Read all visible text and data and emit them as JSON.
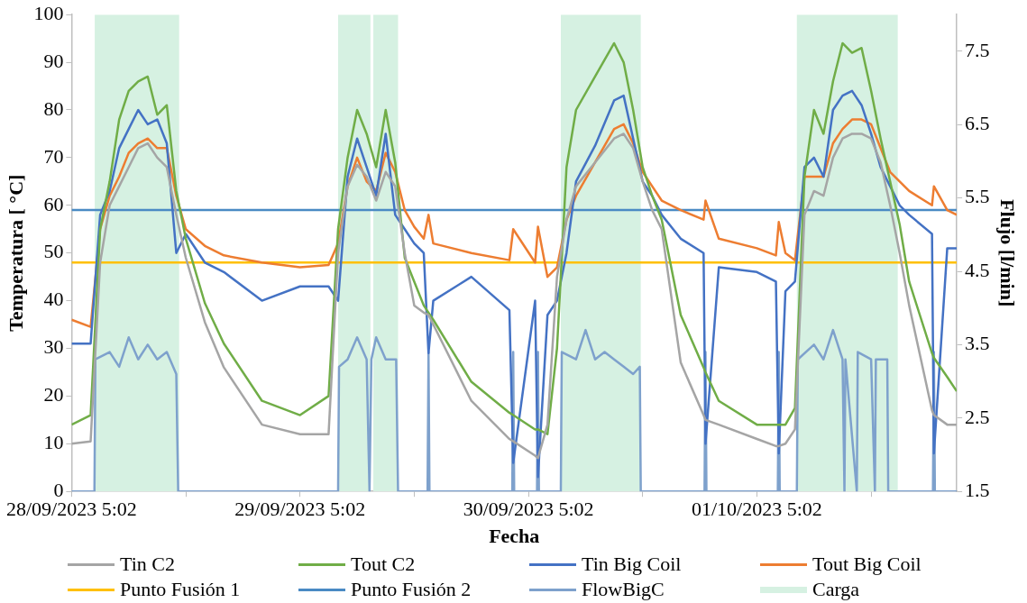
{
  "chart_data": {
    "type": "line",
    "xlabel": "Fecha",
    "ylabel": "Temperatura [ °C]",
    "y2label": "Flujo [l/min]",
    "x": [
      "2023-09-28T05:02",
      "2023-09-28T07:02",
      "2023-09-28T08:02",
      "2023-09-28T09:02",
      "2023-09-28T10:02",
      "2023-09-28T11:02",
      "2023-09-28T12:02",
      "2023-09-28T13:02",
      "2023-09-28T14:02",
      "2023-09-28T15:02",
      "2023-09-28T16:02",
      "2023-09-28T17:02",
      "2023-09-28T19:02",
      "2023-09-28T21:02",
      "2023-09-29T01:02",
      "2023-09-29T05:02",
      "2023-09-29T08:02",
      "2023-09-29T09:02",
      "2023-09-29T10:02",
      "2023-09-29T11:02",
      "2023-09-29T12:02",
      "2023-09-29T13:02",
      "2023-09-29T14:02",
      "2023-09-29T15:02",
      "2023-09-29T16:02",
      "2023-09-29T17:02",
      "2023-09-29T18:02",
      "2023-09-29T18:32",
      "2023-09-29T19:02",
      "2023-09-29T23:02",
      "2023-09-30T03:02",
      "2023-09-30T03:26",
      "2023-09-30T05:44",
      "2023-09-30T06:02",
      "2023-09-30T07:02",
      "2023-09-30T08:02",
      "2023-09-30T09:02",
      "2023-09-30T10:02",
      "2023-09-30T12:02",
      "2023-09-30T14:02",
      "2023-09-30T15:02",
      "2023-09-30T16:02",
      "2023-09-30T17:02",
      "2023-09-30T18:02",
      "2023-09-30T19:02",
      "2023-09-30T21:02",
      "2023-09-30T23:26",
      "2023-09-30T23:38",
      "2023-10-01T01:02",
      "2023-10-01T05:02",
      "2023-10-01T07:02",
      "2023-10-01T07:20",
      "2023-10-01T08:02",
      "2023-10-01T09:02",
      "2023-10-01T10:02",
      "2023-10-01T11:02",
      "2023-10-01T12:02",
      "2023-10-01T13:02",
      "2023-10-01T14:02",
      "2023-10-01T15:02",
      "2023-10-01T16:02",
      "2023-10-01T17:02",
      "2023-10-01T18:02",
      "2023-10-01T19:02",
      "2023-10-01T20:02",
      "2023-10-01T21:02",
      "2023-10-01T23:26",
      "2023-10-01T23:38",
      "2023-10-02T01:02",
      "2023-10-02T02:02"
    ],
    "series": [
      {
        "name": "Tin C2",
        "color": "#a5a5a5",
        "values": [
          10,
          10.5,
          48,
          60,
          64,
          68,
          72,
          73,
          70,
          68,
          58,
          49,
          35.5,
          26,
          14,
          12,
          12,
          50,
          64,
          68.5,
          66,
          61,
          67,
          64,
          50,
          39,
          37.5,
          37,
          35,
          19,
          11,
          10.5,
          7.5,
          7,
          14,
          45,
          57,
          64,
          69,
          74,
          75,
          72,
          65,
          59,
          55,
          27,
          16,
          15,
          14,
          11,
          9.5,
          9.5,
          10,
          13,
          58,
          63,
          62,
          70,
          74,
          75,
          75,
          74,
          69,
          60,
          50,
          39,
          17,
          16,
          14,
          14
        ]
      },
      {
        "name": "Tout C2",
        "color": "#70ad47",
        "values": [
          14,
          16,
          55,
          65,
          78,
          84,
          86,
          87,
          79,
          81,
          63,
          53,
          39.5,
          31,
          19,
          16,
          20,
          55,
          70,
          80,
          75,
          68,
          80,
          69,
          49,
          44,
          39,
          37.5,
          36,
          23,
          16.5,
          16,
          13,
          13,
          12,
          30,
          68,
          80,
          87,
          94,
          90,
          80,
          68,
          62,
          57,
          37,
          26,
          25,
          19,
          14,
          14,
          14,
          14,
          17.5,
          66,
          80,
          75,
          86,
          94,
          92,
          93,
          84,
          74,
          65,
          56,
          44,
          29,
          28,
          24,
          21
        ]
      },
      {
        "name": "Tin Big Coil",
        "color": "#4472c4",
        "values": [
          31,
          31,
          58,
          63,
          72,
          76,
          80,
          77,
          78,
          73,
          50,
          54,
          48,
          46,
          40,
          43,
          43,
          40,
          66,
          74,
          68,
          62,
          75,
          58,
          55,
          52,
          50,
          29,
          40,
          45,
          38,
          6,
          40,
          3,
          37,
          40,
          50,
          65,
          72.5,
          82,
          83,
          74,
          65,
          62,
          58,
          53,
          50,
          10,
          47,
          46,
          44,
          8,
          42,
          44,
          68,
          70,
          66,
          80,
          83,
          84,
          81,
          75,
          68,
          64,
          60,
          58,
          54,
          8,
          51,
          51
        ]
      },
      {
        "name": "Tout Big Coil",
        "color": "#ed7d31",
        "values": [
          36,
          34.5,
          55,
          62,
          66,
          71,
          73,
          74,
          72,
          72,
          62,
          55,
          51.5,
          49.5,
          48,
          47,
          47.5,
          52,
          64,
          70,
          65,
          63,
          71,
          67,
          59,
          55.5,
          53,
          58,
          52,
          50,
          48.5,
          55,
          48,
          55.5,
          45,
          47,
          57,
          62,
          69,
          76,
          77,
          73,
          67,
          64,
          61,
          59,
          57,
          61,
          53,
          51,
          49.5,
          56.5,
          50,
          48.5,
          66,
          66,
          66,
          73,
          76,
          78,
          78,
          77,
          72,
          67,
          65,
          63,
          60,
          64,
          59,
          58
        ]
      },
      {
        "name": "Punto Fusión 1",
        "color": "#ffc000",
        "x": [
          "2023-09-28T05:02",
          "2023-10-02T02:02"
        ],
        "values": [
          48,
          48
        ]
      },
      {
        "name": "Punto Fusión 2",
        "color": "#4a8ac4",
        "x": [
          "2023-09-28T05:02",
          "2023-10-02T02:02"
        ],
        "values": [
          59,
          59
        ]
      },
      {
        "name": "FlowBigC",
        "color": "#7ea1cc",
        "axis": "y2",
        "x": [
          "2023-09-28T05:02",
          "2023-09-28T07:26",
          "2023-09-28T07:32",
          "2023-09-28T09:02",
          "2023-09-28T10:02",
          "2023-09-28T11:02",
          "2023-09-28T12:02",
          "2023-09-28T13:02",
          "2023-09-28T14:02",
          "2023-09-28T15:02",
          "2023-09-28T16:02",
          "2023-09-28T16:14",
          "2023-09-29T09:02",
          "2023-09-29T09:08",
          "2023-09-29T10:02",
          "2023-09-29T11:02",
          "2023-09-29T12:02",
          "2023-09-29T12:20",
          "2023-09-29T12:32",
          "2023-09-29T13:02",
          "2023-09-29T14:02",
          "2023-09-29T15:08",
          "2023-09-29T15:20",
          "2023-09-29T18:26",
          "2023-09-29T18:32",
          "2023-09-29T18:38",
          "2023-09-30T03:20",
          "2023-09-30T03:26",
          "2023-09-30T03:32",
          "2023-09-30T05:56",
          "2023-09-30T06:02",
          "2023-09-30T06:08",
          "2023-09-30T08:26",
          "2023-09-30T08:32",
          "2023-09-30T10:02",
          "2023-09-30T11:02",
          "2023-09-30T12:02",
          "2023-09-30T13:02",
          "2023-09-30T14:02",
          "2023-09-30T15:02",
          "2023-09-30T16:02",
          "2023-09-30T16:44",
          "2023-09-30T16:50",
          "2023-09-30T23:32",
          "2023-09-30T23:38",
          "2023-09-30T23:44",
          "2023-10-01T07:14",
          "2023-10-01T07:20",
          "2023-10-01T07:26",
          "2023-10-01T09:14",
          "2023-10-01T09:20",
          "2023-10-01T11:02",
          "2023-10-01T12:02",
          "2023-10-01T13:02",
          "2023-10-01T14:02",
          "2023-10-01T14:14",
          "2023-10-01T14:20",
          "2023-10-01T15:32",
          "2023-10-01T15:38",
          "2023-10-01T17:02",
          "2023-10-01T17:26",
          "2023-10-01T17:32",
          "2023-10-01T18:44",
          "2023-10-01T18:50",
          "2023-10-01T23:32",
          "2023-10-01T23:38",
          "2023-10-01T23:44",
          "2023-10-02T02:02"
        ],
        "values": [
          1.5,
          1.5,
          3.3,
          3.4,
          3.2,
          3.6,
          3.3,
          3.5,
          3.3,
          3.4,
          3.1,
          1.5,
          1.5,
          3.2,
          3.3,
          3.6,
          3.3,
          1.5,
          3.3,
          3.6,
          3.3,
          3.3,
          1.5,
          1.5,
          3.4,
          1.5,
          1.5,
          3.4,
          1.5,
          1.5,
          3.4,
          1.5,
          1.5,
          3.4,
          3.3,
          3.7,
          3.3,
          3.4,
          3.3,
          3.2,
          3.1,
          3.2,
          1.5,
          1.5,
          3.4,
          1.5,
          1.5,
          3.4,
          1.5,
          1.5,
          3.3,
          3.5,
          3.3,
          3.7,
          3.3,
          1.5,
          3.3,
          1.5,
          3.4,
          3.3,
          1.5,
          3.3,
          3.3,
          1.5,
          1.5,
          3.4,
          1.5,
          1.5
        ]
      }
    ],
    "bands": [
      {
        "axis": "x",
        "from": "2023-09-28T07:28",
        "to": "2023-09-28T16:20",
        "label": "Carga",
        "color": "#d6f1e2"
      },
      {
        "axis": "x",
        "from": "2023-09-29T09:02",
        "to": "2023-09-29T12:26",
        "color": "#d6f1e2"
      },
      {
        "axis": "x",
        "from": "2023-09-29T12:44",
        "to": "2023-09-29T15:20",
        "color": "#d6f1e2"
      },
      {
        "axis": "x",
        "from": "2023-09-30T08:26",
        "to": "2023-09-30T16:50",
        "color": "#d6f1e2"
      },
      {
        "axis": "x",
        "from": "2023-10-01T09:14",
        "to": "2023-10-01T19:50",
        "color": "#d6f1e2"
      }
    ],
    "xlim": [
      "2023-09-28T05:02",
      "2023-10-02T02:02"
    ],
    "xticks": [
      {
        "value": "2023-09-28T05:02",
        "label": "28/09/2023 5:02"
      },
      {
        "value": "2023-09-28T17:02",
        "label": null
      },
      {
        "value": "2023-09-29T05:02",
        "label": "29/09/2023 5:02"
      },
      {
        "value": "2023-09-29T17:02",
        "label": null
      },
      {
        "value": "2023-09-30T05:02",
        "label": "30/09/2023 5:02"
      },
      {
        "value": "2023-09-30T17:02",
        "label": null
      },
      {
        "value": "2023-10-01T05:02",
        "label": "01/10/2023 5:02"
      },
      {
        "value": "2023-10-01T17:02",
        "label": null
      }
    ],
    "ylim": [
      0,
      100
    ],
    "yticks": [
      0,
      10,
      20,
      30,
      40,
      50,
      60,
      70,
      80,
      90,
      100
    ],
    "y2lim": [
      1.5,
      8
    ],
    "y2ticks": [
      1.5,
      2.5,
      3.5,
      4.5,
      5.5,
      6.5,
      7.5
    ],
    "grid": false,
    "legend": "bottom",
    "marker": "none"
  }
}
